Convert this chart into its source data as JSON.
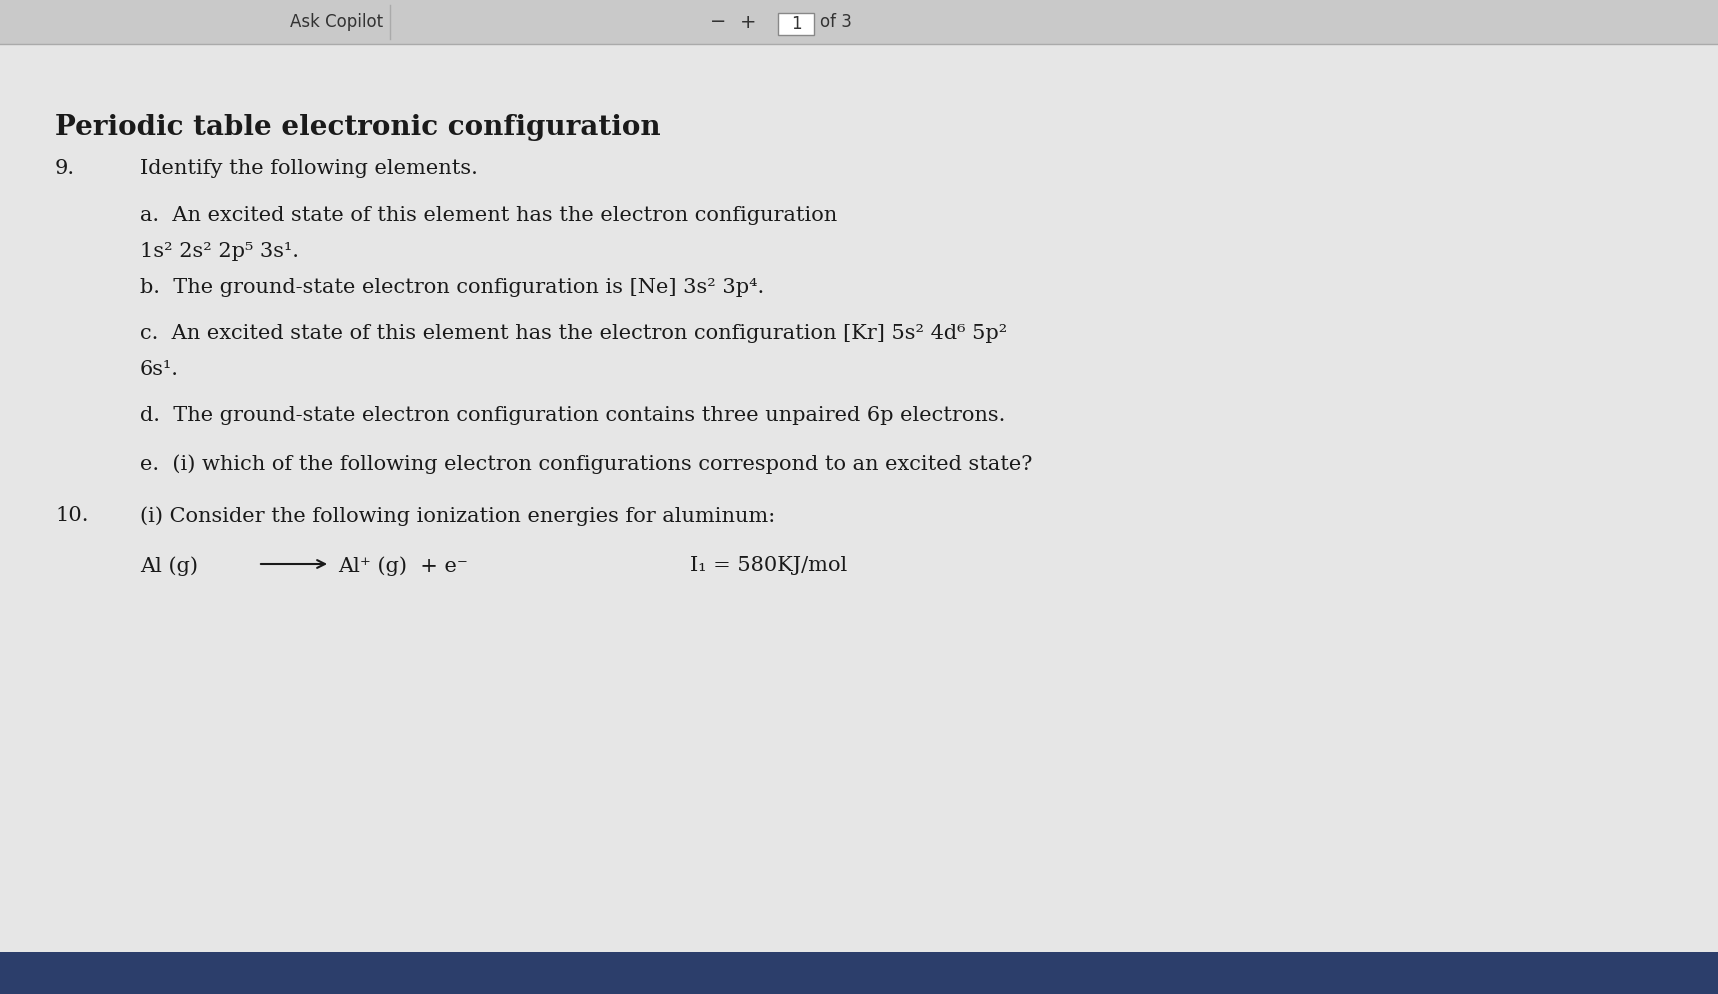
{
  "bg_toolbar": "#c9c9c9",
  "bg_main": "#e6e6e6",
  "bg_bottom": "#2c3e6b",
  "toolbar_text": "Ask Copilot",
  "toolbar_page": "1",
  "toolbar_of": "of 3",
  "title": "Periodic table electronic configuration",
  "q9_label": "9.",
  "q9_text": "Identify the following elements.",
  "qa_line1": "a.  An excited state of this element has the electron configuration",
  "qa_line2": "1s² 2s² 2p⁵ 3s¹.",
  "qb_line1": "b.  The ground-state electron configuration is [Ne] 3s² 3p⁴.",
  "qc_line1": "c.  An excited state of this element has the electron configuration [Kr] 5s² 4d⁶ 5p²",
  "qc_line2": "6s¹.",
  "qd_line1": "d.  The ground-state electron configuration contains three unpaired 6p electrons.",
  "qe_line1": "e.  (i) which of the following electron configurations correspond to an excited state?",
  "q10_label": "10.",
  "q10_line1": "(i) Consider the following ionization energies for aluminum:",
  "q10_i1": "I₁ = 580KJ/mol",
  "q10_rxn_left": "Al (g)",
  "q10_rxn_right": "Al⁺ (g)  + e⁻",
  "text_color": "#1a1a1a",
  "title_color": "#1a1a1a",
  "font_size_title": 20,
  "font_size_body": 15
}
